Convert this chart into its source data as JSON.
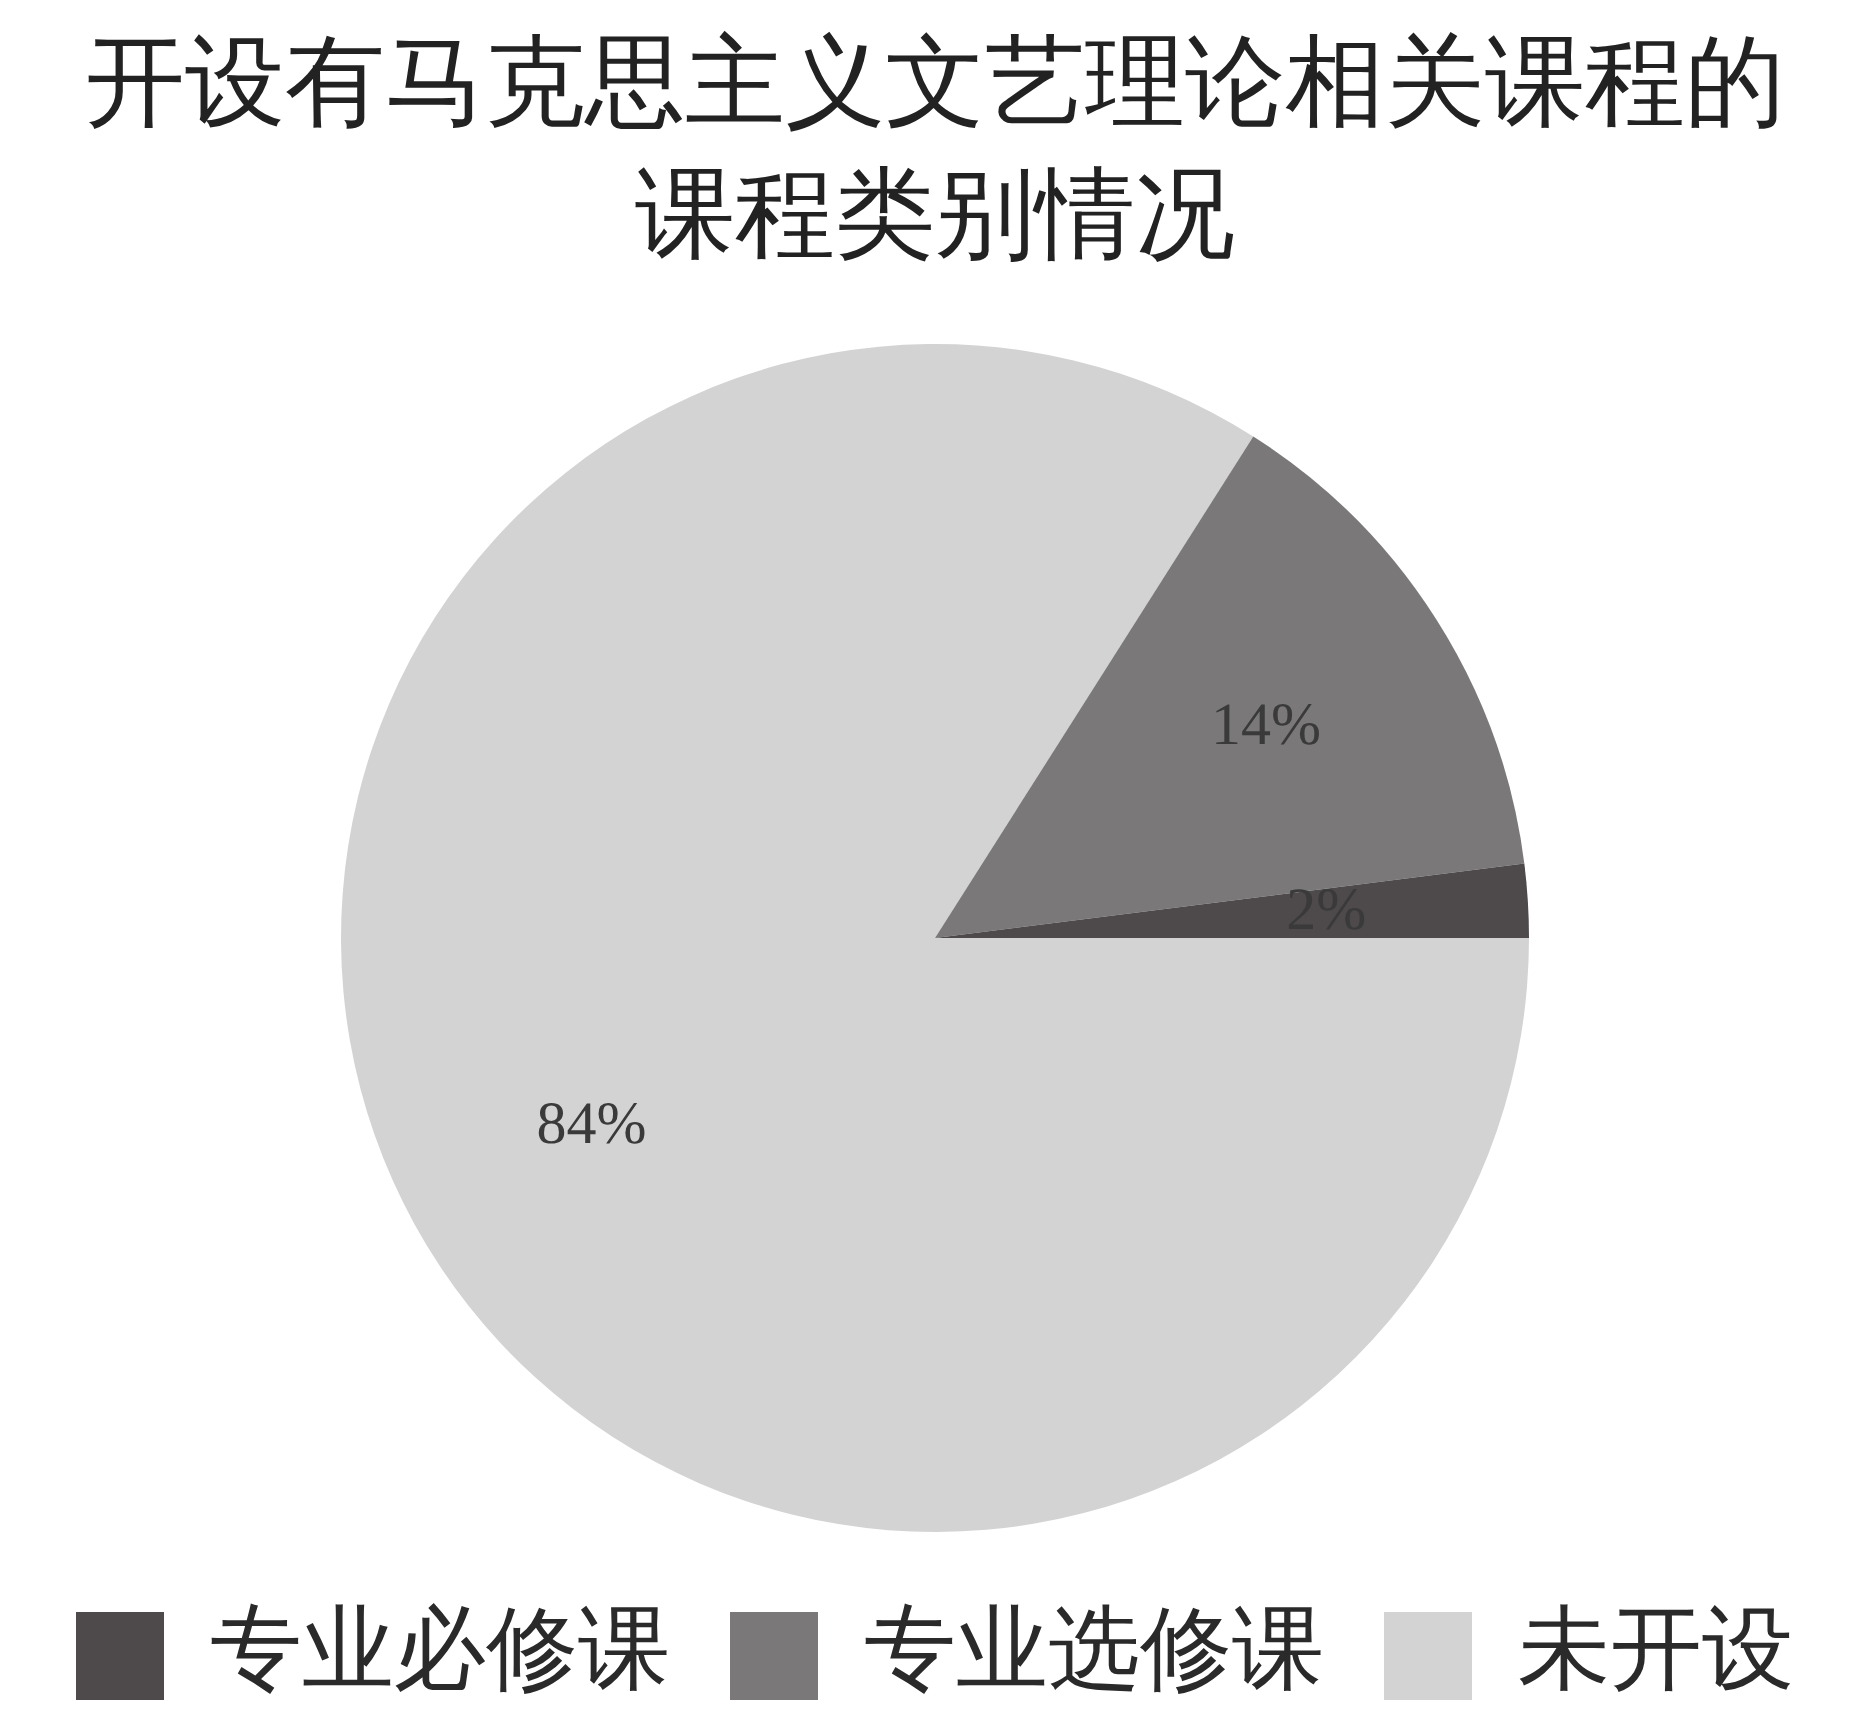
{
  "chart_data": {
    "type": "pie",
    "title": "开设有马克思主义文艺理论相关课程的课程类别情况",
    "categories": [
      "专业必修课",
      "专业选修课",
      "未开设"
    ],
    "values": [
      2,
      14,
      84
    ],
    "colors": [
      "#4e4a4b",
      "#7a7879",
      "#d3d3d3"
    ],
    "value_labels": [
      "2%",
      "14%",
      "84%"
    ],
    "legend": "bottom"
  }
}
